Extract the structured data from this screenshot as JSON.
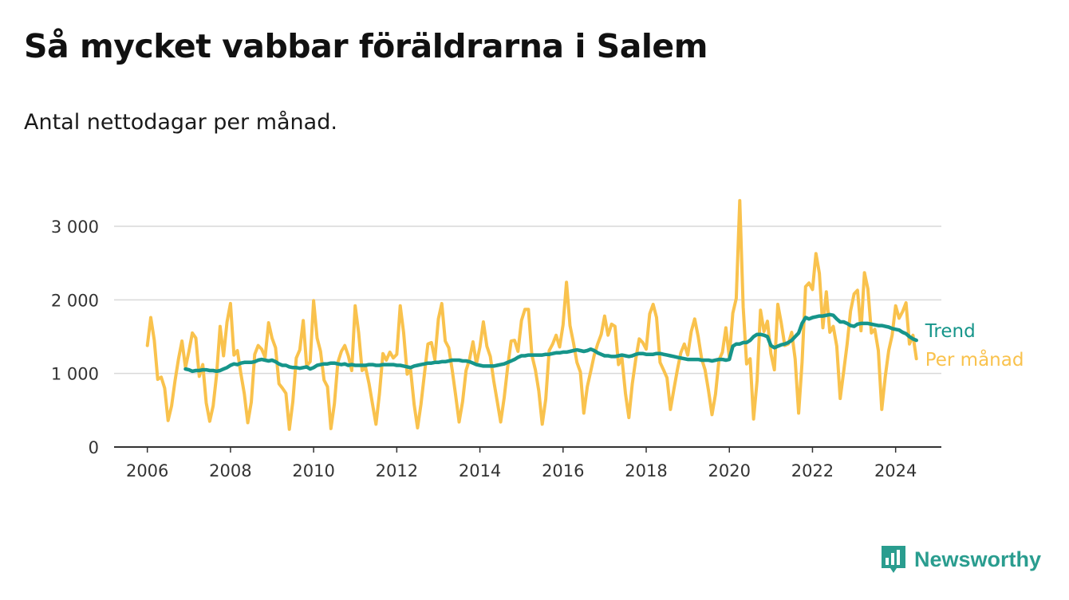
{
  "title": "Så mycket vabbar föräldrarna i Salem",
  "subtitle": "Antal nettodagar per månad.",
  "brand": {
    "name": "Newsworthy",
    "icon": "bar-chart-icon",
    "color": "#2a9d8f"
  },
  "chart_data": {
    "type": "line",
    "xlabel": "",
    "ylabel": "",
    "xlim": [
      2005.2,
      2025.1
    ],
    "ylim": [
      0,
      3000
    ],
    "yticks": [
      0,
      1000,
      2000,
      3000
    ],
    "ytick_labels": [
      "0",
      "1 000",
      "2 000",
      "3 000"
    ],
    "xticks": [
      2006,
      2008,
      2010,
      2012,
      2014,
      2016,
      2018,
      2020,
      2022,
      2024
    ],
    "xtick_labels": [
      "2006",
      "2008",
      "2010",
      "2012",
      "2014",
      "2016",
      "2018",
      "2020",
      "2022",
      "2024"
    ],
    "grid": true,
    "legend": "inline-right",
    "series": [
      {
        "name": "Per månad",
        "color": "#f9c24d",
        "start": [
          2006,
          1
        ],
        "values": [
          1380,
          1760,
          1450,
          920,
          950,
          800,
          360,
          560,
          900,
          1200,
          1440,
          1080,
          1300,
          1550,
          1480,
          960,
          1120,
          600,
          350,
          560,
          980,
          1640,
          1240,
          1700,
          1950,
          1250,
          1310,
          1000,
          720,
          330,
          610,
          1260,
          1380,
          1330,
          1220,
          1690,
          1480,
          1350,
          860,
          800,
          730,
          240,
          620,
          1210,
          1320,
          1720,
          1100,
          1160,
          1990,
          1480,
          1300,
          910,
          820,
          250,
          590,
          1150,
          1300,
          1380,
          1240,
          1040,
          1920,
          1550,
          1040,
          1080,
          860,
          580,
          310,
          720,
          1270,
          1180,
          1290,
          1210,
          1260,
          1920,
          1550,
          990,
          1050,
          580,
          260,
          580,
          1000,
          1400,
          1420,
          1190,
          1740,
          1950,
          1440,
          1350,
          1050,
          700,
          340,
          620,
          1040,
          1190,
          1430,
          1130,
          1360,
          1700,
          1370,
          1230,
          900,
          620,
          340,
          670,
          1080,
          1440,
          1450,
          1300,
          1720,
          1870,
          1870,
          1250,
          1050,
          760,
          310,
          650,
          1310,
          1400,
          1520,
          1360,
          1660,
          2240,
          1650,
          1420,
          1150,
          1020,
          460,
          820,
          1030,
          1250,
          1400,
          1530,
          1780,
          1520,
          1670,
          1640,
          1120,
          1210,
          730,
          400,
          860,
          1200,
          1470,
          1420,
          1330,
          1810,
          1940,
          1760,
          1150,
          1050,
          940,
          510,
          790,
          1050,
          1280,
          1400,
          1250,
          1570,
          1740,
          1500,
          1200,
          1050,
          760,
          440,
          720,
          1180,
          1290,
          1620,
          1220,
          1820,
          2020,
          3350,
          1900,
          1130,
          1200,
          380,
          900,
          1860,
          1570,
          1710,
          1270,
          1050,
          1940,
          1680,
          1380,
          1400,
          1560,
          1200,
          460,
          1150,
          2180,
          2230,
          2140,
          2630,
          2360,
          1620,
          2110,
          1560,
          1640,
          1370,
          660,
          1020,
          1400,
          1850,
          2080,
          2130,
          1580,
          2370,
          2150,
          1550,
          1600,
          1310,
          510,
          960,
          1310,
          1520,
          1920,
          1750,
          1840,
          1960,
          1400,
          1520,
          1200
        ]
      },
      {
        "name": "Trend",
        "color": "#16958a",
        "start": [
          2006,
          12
        ],
        "values": [
          1060,
          1050,
          1030,
          1040,
          1040,
          1050,
          1050,
          1040,
          1040,
          1030,
          1040,
          1060,
          1080,
          1110,
          1130,
          1120,
          1140,
          1150,
          1150,
          1150,
          1160,
          1180,
          1190,
          1180,
          1170,
          1180,
          1160,
          1130,
          1110,
          1110,
          1090,
          1080,
          1080,
          1070,
          1080,
          1090,
          1060,
          1080,
          1110,
          1120,
          1130,
          1130,
          1140,
          1140,
          1130,
          1120,
          1130,
          1110,
          1120,
          1110,
          1110,
          1110,
          1110,
          1120,
          1120,
          1110,
          1110,
          1120,
          1120,
          1120,
          1120,
          1110,
          1110,
          1100,
          1090,
          1080,
          1100,
          1110,
          1120,
          1130,
          1140,
          1140,
          1150,
          1150,
          1160,
          1160,
          1170,
          1180,
          1180,
          1180,
          1170,
          1170,
          1160,
          1140,
          1120,
          1110,
          1100,
          1100,
          1100,
          1100,
          1110,
          1120,
          1130,
          1150,
          1170,
          1190,
          1220,
          1240,
          1240,
          1250,
          1250,
          1250,
          1250,
          1250,
          1260,
          1260,
          1270,
          1280,
          1280,
          1290,
          1290,
          1300,
          1310,
          1320,
          1310,
          1300,
          1310,
          1330,
          1310,
          1280,
          1260,
          1240,
          1240,
          1230,
          1230,
          1240,
          1250,
          1240,
          1230,
          1240,
          1260,
          1270,
          1270,
          1260,
          1260,
          1260,
          1270,
          1270,
          1260,
          1250,
          1240,
          1230,
          1220,
          1210,
          1200,
          1190,
          1190,
          1190,
          1190,
          1180,
          1180,
          1180,
          1170,
          1180,
          1190,
          1190,
          1180,
          1190,
          1370,
          1400,
          1400,
          1420,
          1420,
          1450,
          1500,
          1530,
          1530,
          1520,
          1500,
          1380,
          1350,
          1370,
          1390,
          1400,
          1420,
          1450,
          1500,
          1550,
          1680,
          1760,
          1740,
          1760,
          1770,
          1780,
          1780,
          1790,
          1800,
          1790,
          1740,
          1700,
          1700,
          1680,
          1650,
          1640,
          1670,
          1680,
          1680,
          1680,
          1670,
          1660,
          1650,
          1650,
          1640,
          1630,
          1610,
          1600,
          1590,
          1560,
          1540,
          1500,
          1470,
          1450
        ]
      }
    ]
  }
}
